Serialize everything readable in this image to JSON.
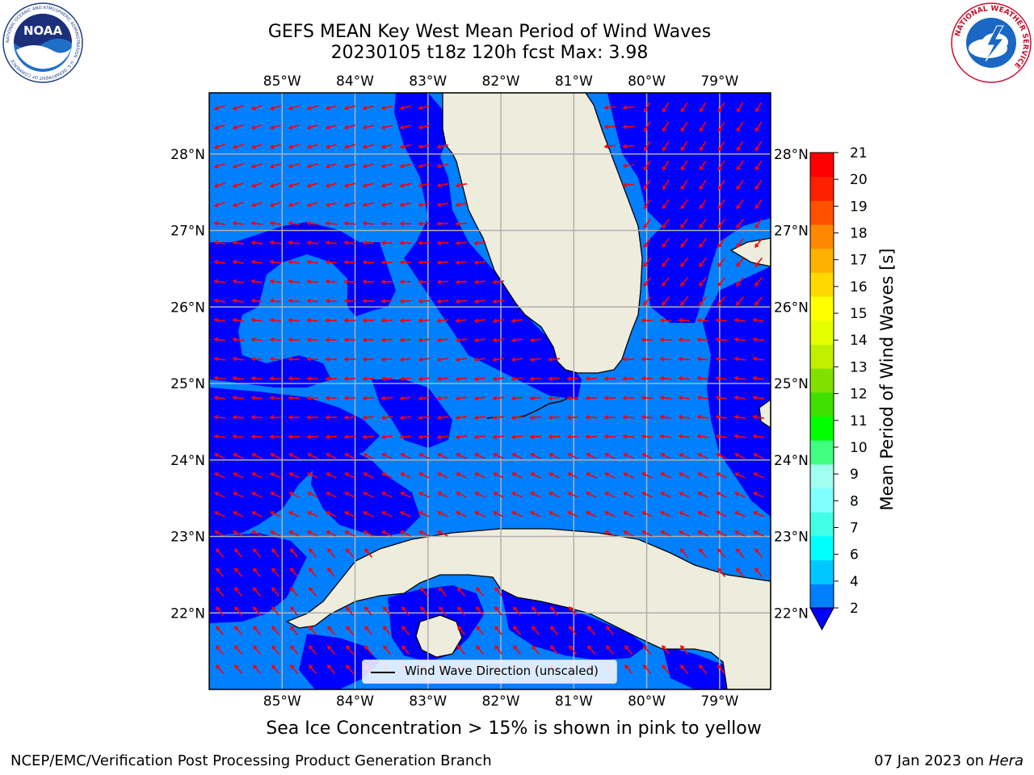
{
  "title": {
    "line1": "GEFS MEAN Key West Mean Period of Wind Waves",
    "line2": "20230105 t18z 120h fcst   Max: 3.98"
  },
  "map": {
    "projection": "PlateCarree",
    "lon_range": [
      -86,
      -78.3
    ],
    "lat_range": [
      21.0,
      28.8
    ],
    "lon_ticks": [
      "85°W",
      "84°W",
      "83°W",
      "82°W",
      "81°W",
      "80°W",
      "79°W"
    ],
    "lon_tick_values": [
      -85,
      -84,
      -83,
      -82,
      -81,
      -80,
      -79
    ],
    "lat_ticks": [
      "28°N",
      "27°N",
      "26°N",
      "25°N",
      "24°N",
      "23°N",
      "22°N"
    ],
    "lat_tick_values": [
      28,
      27,
      26,
      25,
      24,
      23,
      22
    ],
    "ocean_colors": {
      "period_2_4": "#0080ff",
      "below_2": "#0000ff"
    },
    "land_color": "#eeecdc",
    "grid": true,
    "vector_color": "#ff0000"
  },
  "legend": {
    "label": "Wind Wave Direction (unscaled)",
    "placement": "lower-center"
  },
  "colorbar": {
    "label": "Mean Period of Wind Waves [s]",
    "ticks": [
      "2",
      "4",
      "6",
      "7",
      "8",
      "9",
      "10",
      "11",
      "12",
      "13",
      "14",
      "15",
      "16",
      "17",
      "18",
      "19",
      "20",
      "21"
    ],
    "tick_values": [
      2,
      4,
      6,
      7,
      8,
      9,
      10,
      11,
      12,
      13,
      14,
      15,
      16,
      17,
      18,
      19,
      20,
      21
    ],
    "colors": [
      "#0080ff",
      "#00c8ff",
      "#00ffff",
      "#40ffe6",
      "#80ffff",
      "#a0fff0",
      "#40ff80",
      "#00ff00",
      "#40e000",
      "#80e000",
      "#c0f000",
      "#e6ff00",
      "#ffff00",
      "#ffd800",
      "#ffb000",
      "#ff8800",
      "#ff5000",
      "#ff2000",
      "#ff0000"
    ],
    "extend": "min",
    "under_color": "#0000ff"
  },
  "notes": {
    "sea_ice": "Sea Ice Concentration > 15% is shown in pink to yellow"
  },
  "footer": {
    "left": "NCEP/EMC/Verification Post Processing Product Generation Branch",
    "right_date": "07 Jan 2023 on ",
    "right_machine": "Hera"
  },
  "logos": {
    "left": {
      "name": "noaa-logo",
      "text": "NOAA",
      "ring_text": "NATIONAL OCEANIC AND ATMOSPHERIC ADMINISTRATION · U.S. DEPARTMENT OF COMMERCE"
    },
    "right": {
      "name": "nws-logo",
      "ring_text": "NATIONAL WEATHER SERVICE"
    }
  }
}
